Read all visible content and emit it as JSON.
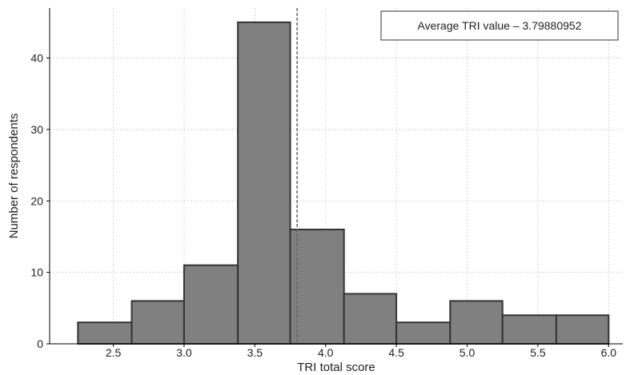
{
  "chart_data": {
    "type": "bar",
    "title": "",
    "xlabel": "TRI total score",
    "ylabel": "Number of respondents",
    "xlim": [
      2.05,
      6.1
    ],
    "ylim": [
      0,
      47
    ],
    "x_ticks": [
      "2.5",
      "3.0",
      "3.5",
      "4.0",
      "4.5",
      "5.0",
      "5.5",
      "6.0"
    ],
    "y_ticks": [
      "0",
      "10",
      "20",
      "30",
      "40"
    ],
    "bins": [
      {
        "start": 2.25,
        "end": 2.63,
        "count": 3
      },
      {
        "start": 2.63,
        "end": 3.0,
        "count": 6
      },
      {
        "start": 3.0,
        "end": 3.38,
        "count": 11
      },
      {
        "start": 3.38,
        "end": 3.75,
        "count": 45
      },
      {
        "start": 3.75,
        "end": 4.13,
        "count": 16
      },
      {
        "start": 4.13,
        "end": 4.5,
        "count": 7
      },
      {
        "start": 4.5,
        "end": 4.88,
        "count": 3
      },
      {
        "start": 4.88,
        "end": 5.25,
        "count": 6
      },
      {
        "start": 5.25,
        "end": 5.63,
        "count": 4
      },
      {
        "start": 5.63,
        "end": 6.0,
        "count": 4
      }
    ],
    "mean_line": {
      "value": 3.79880952,
      "label": "Average TRI value – 3.79880952"
    },
    "grid": true,
    "legend_position": "top-right",
    "colors": {
      "bar": "#808080",
      "bar_edge": "#333333",
      "mean_line": "#666666",
      "grid": "#cccccc"
    }
  }
}
